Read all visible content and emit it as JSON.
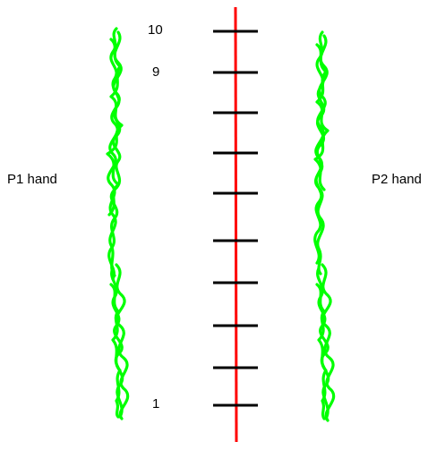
{
  "labels": {
    "p1_hand": "P1 hand",
    "p2_hand": "P2 hand"
  },
  "track": {
    "tick_count": 10,
    "numbered_ticks": [
      {
        "value": 10,
        "text": "10"
      },
      {
        "value": 9,
        "text": "9"
      },
      {
        "value": 1,
        "text": "1"
      }
    ]
  },
  "colors": {
    "track_line": "#ff0000",
    "tick": "#000000",
    "hand_scribble": "#00ff00",
    "text": "#000000",
    "background": "#ffffff"
  },
  "icons": {
    "p1_hand": "green-scribble-column",
    "p2_hand": "green-scribble-column"
  }
}
